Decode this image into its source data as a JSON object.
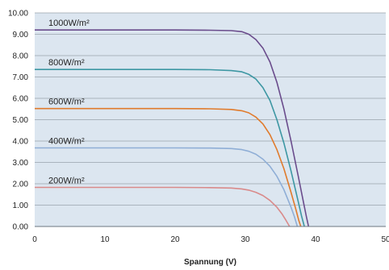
{
  "chart_data": {
    "type": "line",
    "title": "",
    "xlabel": "Spannung (V)",
    "ylabel": "",
    "xlim": [
      0,
      50
    ],
    "ylim": [
      0,
      10
    ],
    "x_ticks": [
      "0",
      "10",
      "20",
      "30",
      "40",
      "50"
    ],
    "y_ticks": [
      "0.00",
      "1.00",
      "2.00",
      "3.00",
      "4.00",
      "5.00",
      "6.00",
      "7.00",
      "8.00",
      "9.00",
      "10.00"
    ],
    "grid": "horizontal",
    "legend": "labels beside curves",
    "plot_background": "#dce6f0",
    "series": [
      {
        "name": "1000W/m²",
        "color": "#6a4c8c",
        "x": [
          0,
          10,
          20,
          25,
          28,
          29.5,
          30.5,
          31.5,
          32.5,
          33.5,
          34.5,
          35.5,
          36.5,
          37.5,
          38.3,
          38.7,
          39.0
        ],
        "y": [
          9.2,
          9.2,
          9.2,
          9.19,
          9.17,
          9.12,
          9.0,
          8.75,
          8.35,
          7.7,
          6.75,
          5.5,
          4.0,
          2.4,
          1.1,
          0.45,
          0.0
        ]
      },
      {
        "name": "800W/m²",
        "color": "#3d97a3",
        "x": [
          0,
          10,
          20,
          25,
          28,
          29.5,
          30.5,
          31.5,
          32.5,
          33.5,
          34.5,
          35.5,
          36.5,
          37.5,
          38.0,
          38.4
        ],
        "y": [
          7.35,
          7.35,
          7.35,
          7.34,
          7.3,
          7.24,
          7.12,
          6.9,
          6.5,
          5.9,
          5.0,
          3.9,
          2.6,
          1.2,
          0.5,
          0.0
        ]
      },
      {
        "name": "600W/m²",
        "color": "#e07b2c",
        "x": [
          0,
          10,
          20,
          25,
          28,
          29.5,
          30.5,
          31.5,
          32.5,
          33.5,
          34.5,
          35.5,
          36.5,
          37.2,
          37.6,
          37.9
        ],
        "y": [
          5.52,
          5.52,
          5.52,
          5.51,
          5.48,
          5.42,
          5.32,
          5.12,
          4.8,
          4.3,
          3.6,
          2.7,
          1.6,
          0.8,
          0.3,
          0.0
        ]
      },
      {
        "name": "400W/m²",
        "color": "#8faed6",
        "x": [
          0,
          10,
          20,
          25,
          28,
          29.5,
          30.5,
          31.5,
          32.5,
          33.5,
          34.5,
          35.5,
          36.5,
          37.0,
          37.4
        ],
        "y": [
          3.68,
          3.68,
          3.68,
          3.67,
          3.65,
          3.6,
          3.52,
          3.38,
          3.15,
          2.82,
          2.35,
          1.72,
          0.9,
          0.45,
          0.0
        ]
      },
      {
        "name": "200W/m²",
        "color": "#d98a8a",
        "x": [
          0,
          10,
          20,
          25,
          28,
          29.5,
          30.5,
          31.5,
          32.5,
          33.5,
          34.5,
          35.2,
          35.8,
          36.3
        ],
        "y": [
          1.83,
          1.83,
          1.83,
          1.82,
          1.8,
          1.76,
          1.7,
          1.6,
          1.45,
          1.22,
          0.9,
          0.6,
          0.28,
          0.0
        ]
      }
    ]
  }
}
